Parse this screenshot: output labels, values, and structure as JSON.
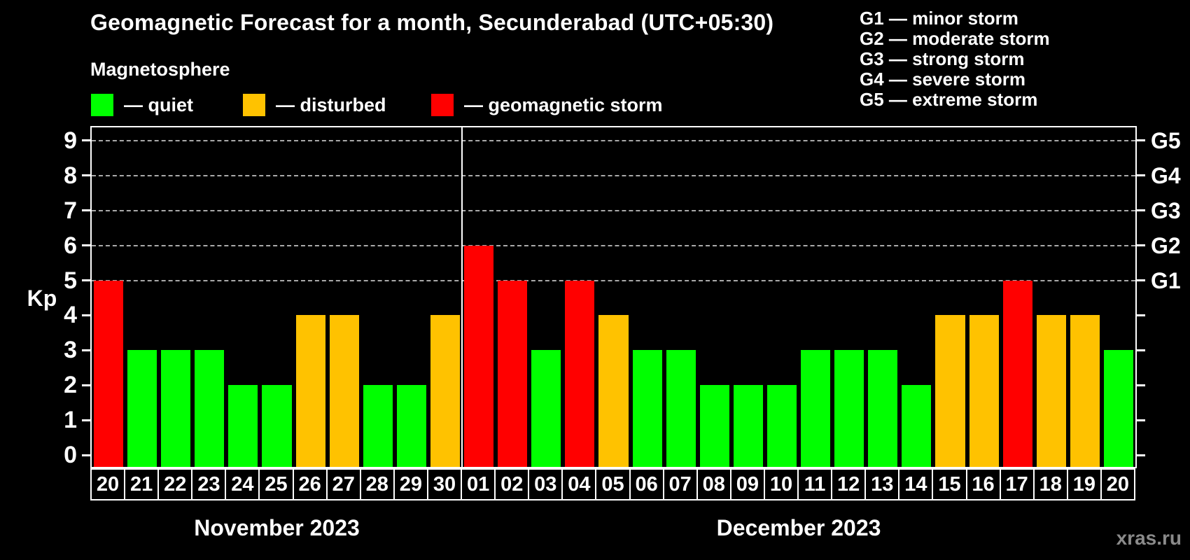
{
  "header": {
    "title": "Geomagnetic Forecast for a month, Secunderabad (UTC+05:30)",
    "subtitle": "Magnetosphere"
  },
  "legend": [
    {
      "key": "quiet",
      "label": "— quiet",
      "color": "#00ff00"
    },
    {
      "key": "disturbed",
      "label": "— disturbed",
      "color": "#ffc200"
    },
    {
      "key": "storm",
      "label": "— geomagnetic storm",
      "color": "#ff0000"
    }
  ],
  "g_legend": [
    "G1 — minor storm",
    "G2 — moderate storm",
    "G3 — strong storm",
    "G4 — severe storm",
    "G5 — extreme storm"
  ],
  "watermark": "xras.ru",
  "chart_data": {
    "type": "bar",
    "title": "Geomagnetic Forecast for a month, Secunderabad (UTC+05:30)",
    "ylabel_left": "Kp",
    "yticks_left": [
      0,
      1,
      2,
      3,
      4,
      5,
      6,
      7,
      8,
      9
    ],
    "yticks_right": {
      "5": "G1",
      "6": "G2",
      "7": "G3",
      "8": "G4",
      "9": "G5"
    },
    "ylim": [
      -0.35,
      9.38
    ],
    "gridlines_at": [
      5,
      6,
      7,
      8,
      9
    ],
    "grid_style": "dashed",
    "legend_position": "top",
    "month_groups": [
      {
        "label": "November 2023",
        "days": 11
      },
      {
        "label": "December 2023",
        "days": 20
      }
    ],
    "categories": [
      "20",
      "21",
      "22",
      "23",
      "24",
      "25",
      "26",
      "27",
      "28",
      "29",
      "30",
      "01",
      "02",
      "03",
      "04",
      "05",
      "06",
      "07",
      "08",
      "09",
      "10",
      "11",
      "12",
      "13",
      "14",
      "15",
      "16",
      "17",
      "18",
      "19",
      "20"
    ],
    "values": [
      5,
      3,
      3,
      3,
      2,
      2,
      4,
      4,
      2,
      2,
      4,
      6,
      5,
      3,
      5,
      4,
      3,
      3,
      2,
      2,
      2,
      3,
      3,
      3,
      2,
      4,
      4,
      5,
      4,
      4,
      3
    ],
    "states": [
      "storm",
      "quiet",
      "quiet",
      "quiet",
      "quiet",
      "quiet",
      "disturbed",
      "disturbed",
      "quiet",
      "quiet",
      "disturbed",
      "storm",
      "storm",
      "quiet",
      "storm",
      "disturbed",
      "quiet",
      "quiet",
      "quiet",
      "quiet",
      "quiet",
      "quiet",
      "quiet",
      "quiet",
      "quiet",
      "disturbed",
      "disturbed",
      "storm",
      "disturbed",
      "disturbed",
      "quiet"
    ],
    "colors": {
      "quiet": "#00ff00",
      "disturbed": "#ffc200",
      "storm": "#ff0000"
    }
  }
}
